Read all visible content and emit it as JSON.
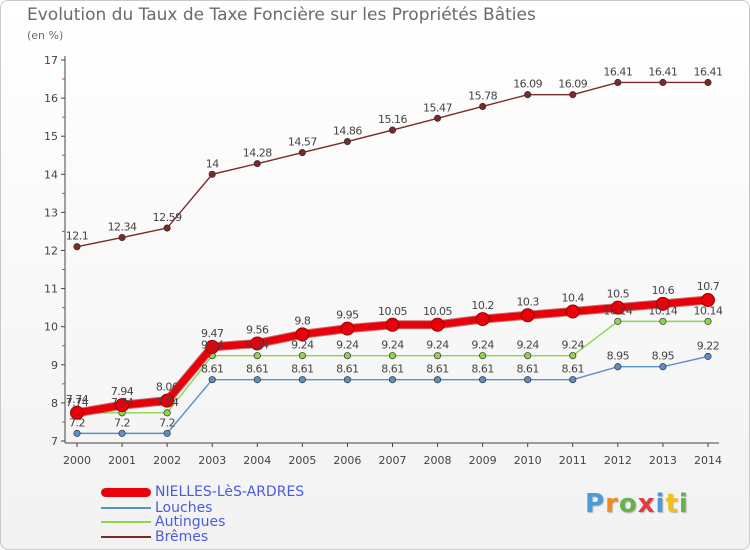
{
  "header": {
    "title": "Evolution du Taux de Taxe Foncière sur les Propriétés Bâties",
    "unit": "(en %)"
  },
  "brand": {
    "text": "Proxiti",
    "colors": [
      "#4a9bd8",
      "#f08a24",
      "#6ab04c",
      "#e23b3b",
      "#4a9bd8",
      "#f0c020",
      "#6ab04c"
    ]
  },
  "chart_data": {
    "type": "line",
    "title": "Evolution du Taux de Taxe Foncière sur les Propriétés Bâties",
    "ylabel": "(en %)",
    "xlabel": "",
    "ylim": [
      7,
      17
    ],
    "yticks": [
      7,
      8,
      9,
      10,
      11,
      12,
      13,
      14,
      15,
      16,
      17
    ],
    "grid": false,
    "legend_position": "bottom-left",
    "x": [
      "2000",
      "2001",
      "2002",
      "2003",
      "2004",
      "2005",
      "2006",
      "2007",
      "2008",
      "2009",
      "2010",
      "2011",
      "2012",
      "2013",
      "2014"
    ],
    "series": [
      {
        "name": "Brêmes",
        "color": "#7b2a2a",
        "values": [
          12.1,
          12.34,
          12.59,
          14,
          14.28,
          14.57,
          14.86,
          15.16,
          15.47,
          15.78,
          16.09,
          16.09,
          16.41,
          16.41,
          16.41
        ],
        "labels": [
          "12.1",
          "12.34",
          "12.59",
          "14",
          "14.28",
          "14.57",
          "14.86",
          "15.16",
          "15.47",
          "15.78",
          "16.09",
          "16.09",
          "16.41",
          "16.41",
          "16.41"
        ]
      },
      {
        "name": "Autingues",
        "color": "#8fd44a",
        "values": [
          7.74,
          7.74,
          7.74,
          9.24,
          9.24,
          9.24,
          9.24,
          9.24,
          9.24,
          9.24,
          9.24,
          9.24,
          10.14,
          10.14,
          10.14
        ],
        "labels": [
          "7.74",
          "7.74",
          "7.74",
          "9.24",
          "9.24",
          "9.24",
          "9.24",
          "9.24",
          "9.24",
          "9.24",
          "9.24",
          "9.24",
          "10.14",
          "10.14",
          "10.14"
        ]
      },
      {
        "name": "Louches",
        "color": "#5b8fc7",
        "values": [
          7.2,
          7.2,
          7.2,
          8.61,
          8.61,
          8.61,
          8.61,
          8.61,
          8.61,
          8.61,
          8.61,
          8.61,
          8.95,
          8.95,
          9.22
        ],
        "labels": [
          "7.2",
          "7.2",
          "7.2",
          "8.61",
          "8.61",
          "8.61",
          "8.61",
          "8.61",
          "8.61",
          "8.61",
          "8.61",
          "8.61",
          "8.95",
          "8.95",
          "9.22"
        ]
      },
      {
        "name": "NIELLES-LèS-ARDRES",
        "color": "#e8000b",
        "values": [
          7.74,
          7.94,
          8.06,
          9.47,
          9.56,
          9.8,
          9.95,
          10.05,
          10.05,
          10.2,
          10.3,
          10.4,
          10.5,
          10.6,
          10.7
        ],
        "labels": [
          "7.74",
          "7.94",
          "8.06",
          "9.47",
          "9.56",
          "9.8",
          "9.95",
          "10.05",
          "10.05",
          "10.2",
          "10.3",
          "10.4",
          "10.5",
          "10.6",
          "10.7"
        ]
      }
    ],
    "legend": [
      "NIELLES-LèS-ARDRES",
      "Louches",
      "Autingues",
      "Brêmes"
    ]
  }
}
